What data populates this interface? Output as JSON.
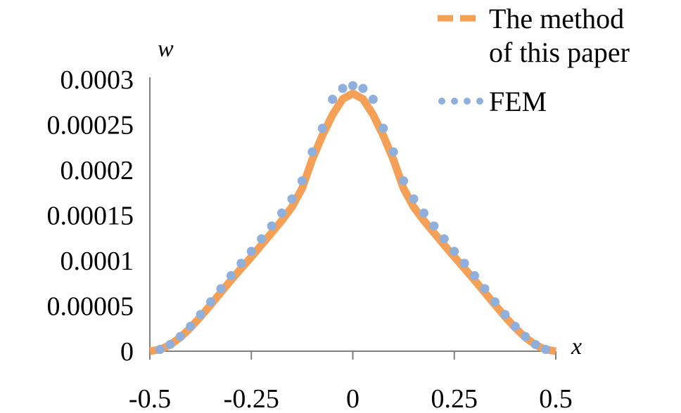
{
  "chart_data": {
    "type": "line",
    "xlabel": "x",
    "ylabel": "w",
    "xlim": [
      -0.5,
      0.5
    ],
    "ylim": [
      0,
      0.0003
    ],
    "x_ticks": [
      "-0.5",
      "-0.25",
      "0",
      "0.25",
      "0.5"
    ],
    "y_ticks": [
      "0",
      "0.00005",
      "0.0001",
      "0.00015",
      "0.0002",
      "0.00025",
      "0.0003"
    ],
    "legend_position": "top-right",
    "grid": false,
    "series": [
      {
        "name": "The method of this paper",
        "legend_lines": [
          "The method",
          "of this paper"
        ],
        "style": "dashed",
        "color": "#F4A057",
        "x": [
          -0.5,
          -0.475,
          -0.45,
          -0.425,
          -0.4,
          -0.375,
          -0.35,
          -0.325,
          -0.3,
          -0.275,
          -0.25,
          -0.225,
          -0.2,
          -0.175,
          -0.15,
          -0.125,
          -0.1,
          -0.075,
          -0.05,
          -0.025,
          0,
          0.025,
          0.05,
          0.075,
          0.1,
          0.125,
          0.15,
          0.175,
          0.2,
          0.225,
          0.25,
          0.275,
          0.3,
          0.325,
          0.35,
          0.375,
          0.4,
          0.425,
          0.45,
          0.475,
          0.5
        ],
        "y": [
          0,
          1.8e-06,
          7e-06,
          1.52e-05,
          2.58e-05,
          3.81e-05,
          5.13e-05,
          6.49e-05,
          7.83e-05,
          9.13e-05,
          0.0001041,
          0.0001173,
          0.0001306,
          0.0001441,
          0.0001591,
          0.0001796,
          0.0002115,
          0.000238,
          0.0002609,
          0.0002784,
          0.0002845,
          0.0002784,
          0.0002609,
          0.000238,
          0.0002115,
          0.0001796,
          0.0001591,
          0.0001441,
          0.0001306,
          0.0001173,
          0.0001041,
          9.13e-05,
          7.83e-05,
          6.49e-05,
          5.13e-05,
          3.81e-05,
          2.58e-05,
          1.52e-05,
          7e-06,
          1.8e-06,
          0
        ]
      },
      {
        "name": "FEM",
        "legend_lines": [
          "FEM"
        ],
        "style": "dotted",
        "color": "#8FB0DC",
        "x": [
          -0.475,
          -0.45,
          -0.425,
          -0.4,
          -0.375,
          -0.35,
          -0.325,
          -0.3,
          -0.275,
          -0.25,
          -0.225,
          -0.2,
          -0.175,
          -0.15,
          -0.125,
          -0.1,
          -0.075,
          -0.05,
          -0.025,
          0,
          0.025,
          0.05,
          0.075,
          0.1,
          0.125,
          0.15,
          0.175,
          0.2,
          0.225,
          0.25,
          0.275,
          0.3,
          0.325,
          0.35,
          0.375,
          0.4,
          0.425,
          0.45,
          0.475
        ],
        "y": [
          1.9e-06,
          7.4e-06,
          1.62e-05,
          2.74e-05,
          4.05e-05,
          5.45e-05,
          6.9e-05,
          8.33e-05,
          9.7e-05,
          0.0001102,
          0.000124,
          0.0001382,
          0.0001524,
          0.000168,
          0.000188,
          0.00022,
          0.000246,
          0.000278,
          0.00029,
          0.000293,
          0.00029,
          0.000278,
          0.000246,
          0.00022,
          0.000188,
          0.000168,
          0.0001524,
          0.0001382,
          0.000124,
          0.0001102,
          9.7e-05,
          8.33e-05,
          6.9e-05,
          5.45e-05,
          4.05e-05,
          2.74e-05,
          1.62e-05,
          7.4e-06,
          1.9e-06
        ]
      }
    ]
  }
}
